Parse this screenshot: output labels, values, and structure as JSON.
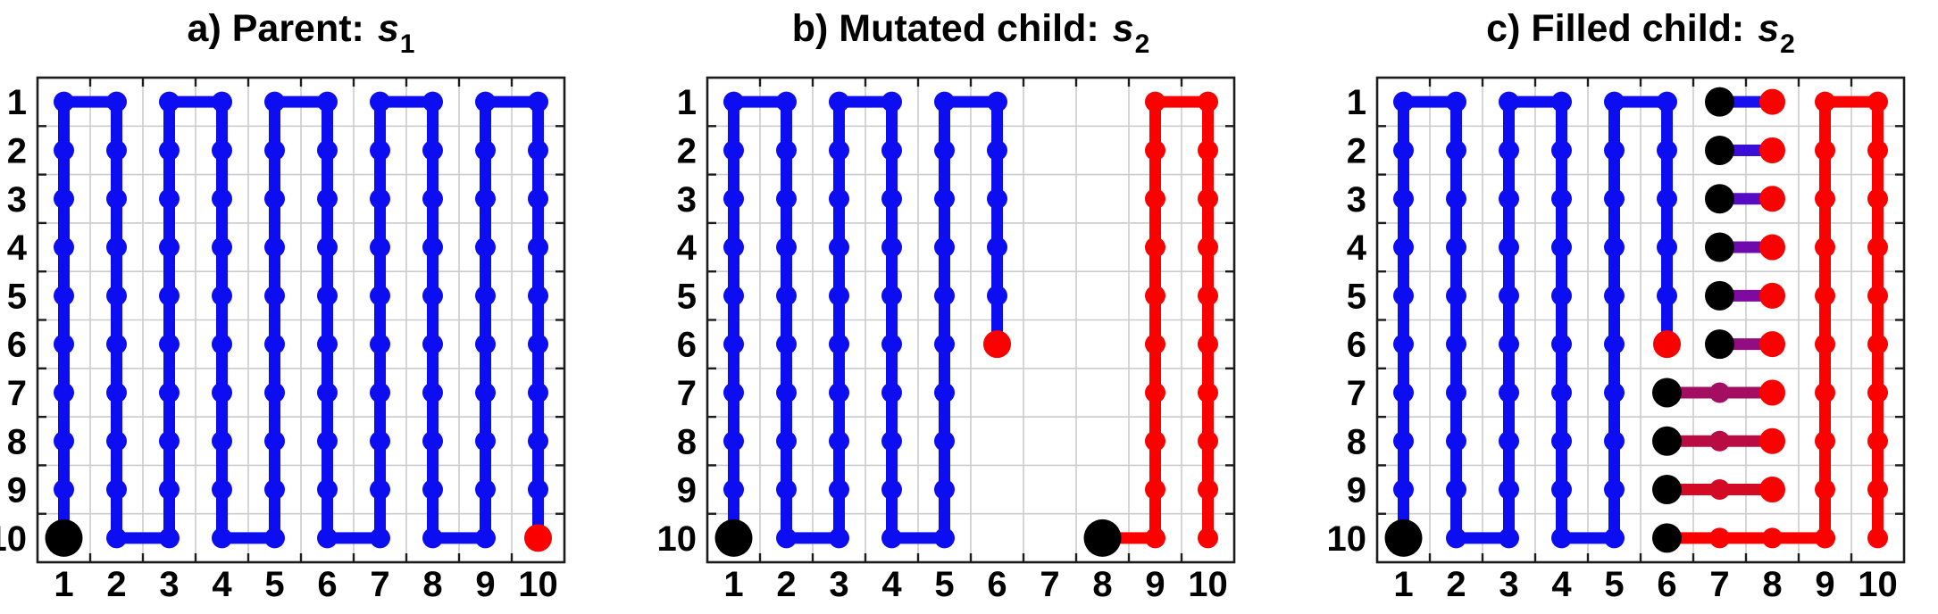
{
  "colors": {
    "path_blue": "#0d0df2",
    "path_red": "#fa0100",
    "marker_black": "#000000",
    "grid_line": "#cccccc",
    "axis_border": "#1c1c1c",
    "label_text": "#000000",
    "background": "#ffffff"
  },
  "chart_data": [
    {
      "id": "a",
      "type": "grid-path",
      "title": {
        "prefix": "a) Parent: ",
        "var": "s",
        "sub": "1"
      },
      "axes": {
        "x_ticks": [
          "1",
          "2",
          "3",
          "4",
          "5",
          "6",
          "7",
          "8",
          "9",
          "10"
        ],
        "y_ticks": [
          "1",
          "2",
          "3",
          "4",
          "5",
          "6",
          "7",
          "8",
          "9",
          "10"
        ],
        "x_range": [
          0.5,
          10.5
        ],
        "y_range": [
          0.5,
          10.5
        ],
        "y_direction": "down",
        "grid": "cell-boundaries"
      },
      "paths": [
        {
          "name": "parent-coverage-path",
          "color": "#0d0df2",
          "points": [
            [
              1,
              10
            ],
            [
              1,
              1
            ],
            [
              2,
              1
            ],
            [
              2,
              10
            ],
            [
              3,
              10
            ],
            [
              3,
              1
            ],
            [
              4,
              1
            ],
            [
              4,
              10
            ],
            [
              5,
              10
            ],
            [
              5,
              1
            ],
            [
              6,
              1
            ],
            [
              6,
              10
            ],
            [
              7,
              10
            ],
            [
              7,
              1
            ],
            [
              8,
              1
            ],
            [
              8,
              10
            ],
            [
              9,
              10
            ],
            [
              9,
              1
            ],
            [
              10,
              1
            ],
            [
              10,
              10
            ]
          ]
        }
      ],
      "markers": [
        {
          "name": "path-start-marker",
          "kind": "path-start",
          "color": "#000000",
          "at": [
            1,
            10
          ]
        },
        {
          "name": "path-end-marker",
          "kind": "path-end",
          "color": "#fa0100",
          "at": [
            10,
            10
          ]
        }
      ]
    },
    {
      "id": "b",
      "type": "grid-path",
      "title": {
        "prefix": "b) Mutated child: ",
        "var": "s",
        "sub": "2"
      },
      "axes": {
        "x_ticks": [
          "1",
          "2",
          "3",
          "4",
          "5",
          "6",
          "7",
          "8",
          "9",
          "10"
        ],
        "y_ticks": [
          "1",
          "2",
          "3",
          "4",
          "5",
          "6",
          "7",
          "8",
          "9",
          "10"
        ],
        "x_range": [
          0.5,
          10.5
        ],
        "y_range": [
          0.5,
          10.5
        ],
        "y_direction": "down",
        "grid": "cell-boundaries"
      },
      "paths": [
        {
          "name": "child-blue-segment",
          "color": "#0d0df2",
          "points": [
            [
              1,
              10
            ],
            [
              1,
              1
            ],
            [
              2,
              1
            ],
            [
              2,
              10
            ],
            [
              3,
              10
            ],
            [
              3,
              1
            ],
            [
              4,
              1
            ],
            [
              4,
              10
            ],
            [
              5,
              10
            ],
            [
              5,
              1
            ],
            [
              6,
              1
            ],
            [
              6,
              6
            ]
          ]
        },
        {
          "name": "child-red-segment",
          "color": "#fa0100",
          "points": [
            [
              8,
              10
            ],
            [
              9,
              10
            ],
            [
              9,
              1
            ],
            [
              10,
              1
            ],
            [
              10,
              10
            ]
          ]
        }
      ],
      "markers": [
        {
          "name": "blue-start-marker",
          "kind": "path-start",
          "color": "#000000",
          "at": [
            1,
            10
          ]
        },
        {
          "name": "blue-end-marker",
          "kind": "path-end",
          "color": "#fa0100",
          "at": [
            6,
            6
          ]
        },
        {
          "name": "red-start-marker",
          "kind": "path-start",
          "color": "#000000",
          "at": [
            8,
            10
          ]
        }
      ]
    },
    {
      "id": "c",
      "type": "grid-path",
      "title": {
        "prefix": "c) Filled child: ",
        "var": "s",
        "sub": "2"
      },
      "axes": {
        "x_ticks": [
          "1",
          "2",
          "3",
          "4",
          "5",
          "6",
          "7",
          "8",
          "9",
          "10"
        ],
        "y_ticks": [
          "1",
          "2",
          "3",
          "4",
          "5",
          "6",
          "7",
          "8",
          "9",
          "10"
        ],
        "x_range": [
          0.5,
          10.5
        ],
        "y_range": [
          0.5,
          10.5
        ],
        "y_direction": "down",
        "grid": "cell-boundaries"
      },
      "paths": [
        {
          "name": "child-blue-segment",
          "color": "#0d0df2",
          "points": [
            [
              1,
              10
            ],
            [
              1,
              1
            ],
            [
              2,
              1
            ],
            [
              2,
              10
            ],
            [
              3,
              10
            ],
            [
              3,
              1
            ],
            [
              4,
              1
            ],
            [
              4,
              10
            ],
            [
              5,
              10
            ],
            [
              5,
              1
            ],
            [
              6,
              1
            ],
            [
              6,
              6
            ]
          ]
        },
        {
          "name": "child-red-segment",
          "color": "#fa0100",
          "points": [
            [
              9,
              10
            ],
            [
              9,
              1
            ],
            [
              10,
              1
            ],
            [
              10,
              10
            ]
          ]
        },
        {
          "name": "fill-segment-row1",
          "color": "#1810ee",
          "points": [
            [
              7,
              1
            ],
            [
              8,
              1
            ]
          ]
        },
        {
          "name": "fill-segment-row2",
          "color": "#3a0ed8",
          "points": [
            [
              7,
              2
            ],
            [
              8,
              2
            ]
          ]
        },
        {
          "name": "fill-segment-row3",
          "color": "#560cc2",
          "points": [
            [
              7,
              3
            ],
            [
              8,
              3
            ]
          ]
        },
        {
          "name": "fill-segment-row4",
          "color": "#6f0bac",
          "points": [
            [
              7,
              4
            ],
            [
              8,
              4
            ]
          ]
        },
        {
          "name": "fill-segment-row5",
          "color": "#7f0a9f",
          "points": [
            [
              7,
              5
            ],
            [
              8,
              5
            ]
          ]
        },
        {
          "name": "fill-segment-row6",
          "color": "#920c82",
          "points": [
            [
              7,
              6
            ],
            [
              8,
              6
            ]
          ]
        },
        {
          "name": "fill-segment-row7",
          "color": "#a30e62",
          "points": [
            [
              6,
              7
            ],
            [
              8,
              7
            ]
          ]
        },
        {
          "name": "fill-segment-row8",
          "color": "#b90c45",
          "points": [
            [
              6,
              8
            ],
            [
              8,
              8
            ]
          ]
        },
        {
          "name": "fill-segment-row9",
          "color": "#d40a24",
          "points": [
            [
              6,
              9
            ],
            [
              8,
              9
            ]
          ]
        },
        {
          "name": "fill-segment-row10",
          "color": "#fa0100",
          "points": [
            [
              6,
              10
            ],
            [
              9,
              10
            ]
          ]
        }
      ],
      "markers": [
        {
          "name": "blue-start-marker",
          "kind": "path-start",
          "color": "#000000",
          "at": [
            1,
            10
          ]
        },
        {
          "name": "blue-end-marker",
          "kind": "path-end",
          "color": "#fa0100",
          "at": [
            6,
            6
          ]
        },
        {
          "name": "fill-end-marker-row1",
          "kind": "fill-end",
          "color": "#fa0100",
          "at": [
            8,
            1
          ]
        },
        {
          "name": "fill-end-marker-row2",
          "kind": "fill-end",
          "color": "#fa0100",
          "at": [
            8,
            2
          ]
        },
        {
          "name": "fill-end-marker-row3",
          "kind": "fill-end",
          "color": "#fa0100",
          "at": [
            8,
            3
          ]
        },
        {
          "name": "fill-end-marker-row4",
          "kind": "fill-end",
          "color": "#fa0100",
          "at": [
            8,
            4
          ]
        },
        {
          "name": "fill-end-marker-row5",
          "kind": "fill-end",
          "color": "#fa0100",
          "at": [
            8,
            5
          ]
        },
        {
          "name": "fill-end-marker-row6",
          "kind": "fill-end",
          "color": "#fa0100",
          "at": [
            8,
            6
          ]
        },
        {
          "name": "fill-end-marker-row7",
          "kind": "fill-end",
          "color": "#fa0100",
          "at": [
            8,
            7
          ]
        },
        {
          "name": "fill-end-marker-row8",
          "kind": "fill-end",
          "color": "#fa0100",
          "at": [
            8,
            8
          ]
        },
        {
          "name": "fill-end-marker-row9",
          "kind": "fill-end",
          "color": "#fa0100",
          "at": [
            8,
            9
          ]
        },
        {
          "name": "fill-start-marker-row1",
          "kind": "fill-start",
          "color": "#000000",
          "at": [
            7,
            1
          ]
        },
        {
          "name": "fill-start-marker-row2",
          "kind": "fill-start",
          "color": "#000000",
          "at": [
            7,
            2
          ]
        },
        {
          "name": "fill-start-marker-row3",
          "kind": "fill-start",
          "color": "#000000",
          "at": [
            7,
            3
          ]
        },
        {
          "name": "fill-start-marker-row4",
          "kind": "fill-start",
          "color": "#000000",
          "at": [
            7,
            4
          ]
        },
        {
          "name": "fill-start-marker-row5",
          "kind": "fill-start",
          "color": "#000000",
          "at": [
            7,
            5
          ]
        },
        {
          "name": "fill-start-marker-row6",
          "kind": "fill-start",
          "color": "#000000",
          "at": [
            7,
            6
          ]
        },
        {
          "name": "fill-start-marker-row7",
          "kind": "fill-start",
          "color": "#000000",
          "at": [
            6,
            7
          ]
        },
        {
          "name": "fill-start-marker-row8",
          "kind": "fill-start",
          "color": "#000000",
          "at": [
            6,
            8
          ]
        },
        {
          "name": "fill-start-marker-row9",
          "kind": "fill-start",
          "color": "#000000",
          "at": [
            6,
            9
          ]
        },
        {
          "name": "fill-start-marker-row10",
          "kind": "fill-start",
          "color": "#000000",
          "at": [
            6,
            10
          ]
        }
      ]
    }
  ]
}
